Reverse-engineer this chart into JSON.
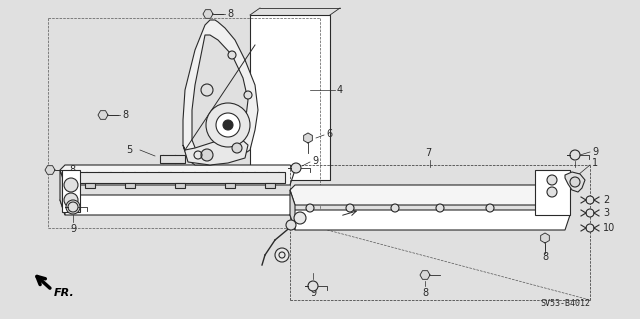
{
  "bg_color": "#e0e0e0",
  "line_color": "#2a2a2a",
  "white": "#ffffff",
  "part_number": "SV53-B4012",
  "fr_label": "FR.",
  "label_fs": 7,
  "pn_fs": 6
}
